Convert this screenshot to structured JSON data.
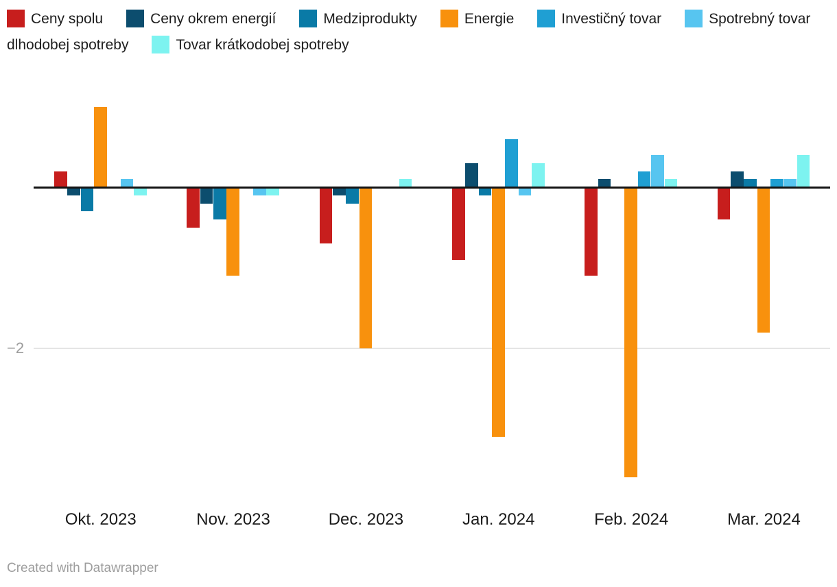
{
  "chart_data": {
    "type": "bar",
    "title": "",
    "categories": [
      "Okt. 2023",
      "Nov. 2023",
      "Dec. 2023",
      "Jan. 2024",
      "Feb. 2024",
      "Mar. 2024"
    ],
    "series": [
      {
        "name": "Ceny spolu",
        "color": "#c71e1d",
        "values": [
          0.2,
          -0.5,
          -0.7,
          -0.9,
          -1.1,
          -0.4
        ]
      },
      {
        "name": "Ceny okrem energií",
        "color": "#0c4d6e",
        "values": [
          -0.1,
          -0.2,
          -0.1,
          0.3,
          0.1,
          0.2
        ]
      },
      {
        "name": "Medziprodukty",
        "color": "#0a7aa6",
        "values": [
          -0.3,
          -0.4,
          -0.2,
          -0.1,
          0,
          0.1
        ]
      },
      {
        "name": "Energie",
        "color": "#f8910d",
        "values": [
          1.0,
          -1.1,
          -2.0,
          -3.1,
          -3.6,
          -1.8
        ]
      },
      {
        "name": "Investičný tovar",
        "color": "#1f9fd3",
        "values": [
          0,
          0,
          0,
          0.6,
          0.2,
          0.1
        ]
      },
      {
        "name": "Spotrebný tovar dlhodobej spotreby",
        "color": "#57c5f0",
        "values": [
          0.1,
          -0.1,
          0,
          -0.1,
          0.4,
          0.1
        ]
      },
      {
        "name": "Tovar krátkodobej spotreby",
        "color": "#7df3f0",
        "values": [
          -0.1,
          -0.1,
          0.1,
          0.3,
          0.1,
          0.4
        ]
      }
    ],
    "y_axis": {
      "tick_label": "−2",
      "tick_value": -2,
      "ylim": [
        -4.0,
        1.5
      ],
      "grid": "single gridline at -2, bold zero baseline"
    },
    "legend_position": "top"
  },
  "footer": {
    "credit": "Created with Datawrapper"
  }
}
